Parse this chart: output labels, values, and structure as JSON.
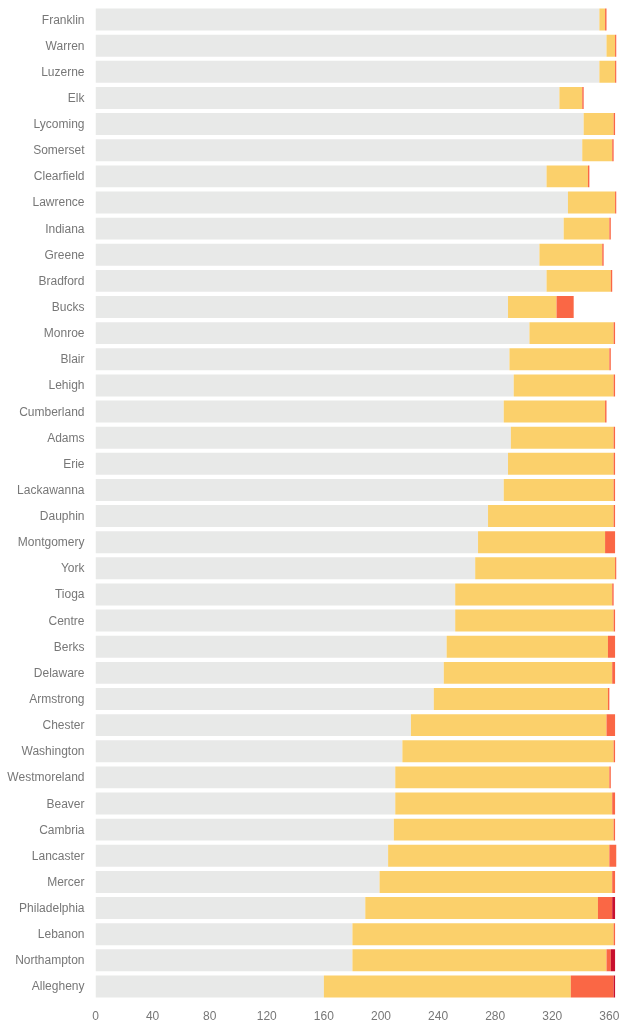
{
  "chart_data": {
    "type": "bar",
    "orientation": "horizontal",
    "stacked": true,
    "categories": [
      "Franklin",
      "Warren",
      "Luzerne",
      "Elk",
      "Lycoming",
      "Somerset",
      "Clearfield",
      "Lawrence",
      "Indiana",
      "Greene",
      "Bradford",
      "Bucks",
      "Monroe",
      "Blair",
      "Lehigh",
      "Cumberland",
      "Adams",
      "Erie",
      "Lackawanna",
      "Dauphin",
      "Montgomery",
      "York",
      "Tioga",
      "Centre",
      "Berks",
      "Delaware",
      "Armstrong",
      "Chester",
      "Washington",
      "Westmoreland",
      "Beaver",
      "Cambria",
      "Lancaster",
      "Mercer",
      "Philadelphia",
      "Lebanon",
      "Northampton",
      "Allegheny"
    ],
    "series": [
      {
        "color": "#e8e9e8",
        "values": [
          353,
          358,
          353,
          325,
          342,
          341,
          316,
          331,
          328,
          311,
          316,
          289,
          304,
          290,
          293,
          286,
          291,
          289,
          286,
          275,
          268,
          266,
          252,
          252,
          246,
          244,
          237,
          221,
          215,
          210,
          210,
          209,
          205,
          199,
          189,
          180,
          180,
          160
        ]
      },
      {
        "color": "#fbd06b",
        "values": [
          4,
          6,
          11,
          16,
          21,
          21,
          29,
          33,
          32,
          44,
          45,
          34,
          59,
          70,
          70,
          71,
          72,
          74,
          77,
          88,
          89,
          98,
          110,
          111,
          113,
          118,
          122,
          137,
          148,
          150,
          152,
          154,
          155,
          163,
          163,
          183,
          178,
          173
        ]
      },
      {
        "color": "#fa6745",
        "values": [
          1,
          1,
          1,
          1,
          1,
          1,
          1,
          1,
          1,
          1,
          1,
          12,
          1,
          1,
          1,
          1,
          1,
          1,
          1,
          1,
          7,
          1,
          1,
          1,
          5,
          2,
          1,
          6,
          1,
          1,
          2,
          1,
          5,
          2,
          10,
          1,
          3,
          30
        ]
      },
      {
        "color": "#c8102e",
        "values": [
          null,
          null,
          null,
          null,
          null,
          null,
          null,
          null,
          null,
          null,
          null,
          null,
          null,
          null,
          null,
          null,
          null,
          null,
          null,
          null,
          null,
          null,
          null,
          null,
          null,
          null,
          null,
          null,
          null,
          null,
          null,
          null,
          null,
          null,
          2,
          null,
          3,
          1
        ]
      }
    ],
    "xlim": [
      0,
      365
    ],
    "xticks": [
      0,
      40,
      80,
      120,
      160,
      200,
      240,
      280,
      320,
      360
    ],
    "grid": false
  }
}
